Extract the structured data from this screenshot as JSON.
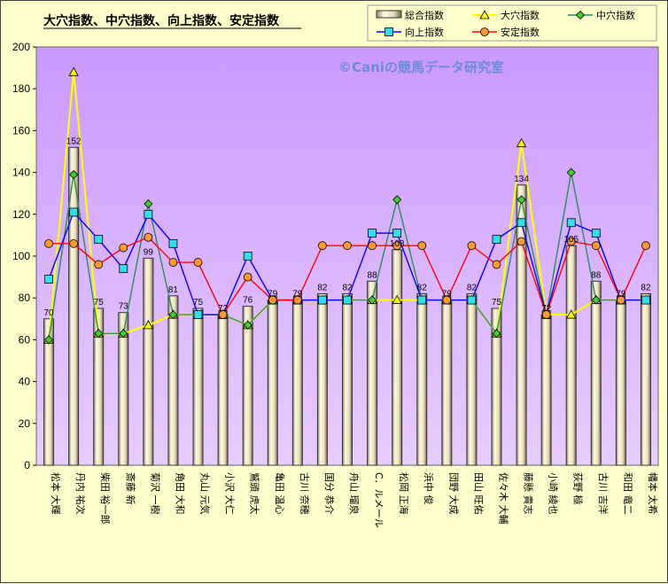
{
  "chart_data": {
    "type": "bar",
    "title": "大穴指数、中穴指数、向上指数、安定指数",
    "watermark": "©Caniの競馬データ研究室",
    "ylim": [
      0,
      200
    ],
    "yticks": [
      0,
      20,
      40,
      60,
      80,
      100,
      120,
      140,
      160,
      180,
      200
    ],
    "grid": false,
    "legend_position": "top-right",
    "categories": [
      "松本 大輝",
      "丹内 祐次",
      "柴田 裕一郎",
      "斎藤 新",
      "菊沢 一樹",
      "角田 大和",
      "丸山 元気",
      "小沢 大仁",
      "鷲頭 虎太",
      "亀田 温心",
      "古川 奈穂",
      "国分 恭介",
      "舟山 瑠泉",
      "C．ルメール",
      "松岡 正海",
      "浜中 俊",
      "団野 大成",
      "田山 旺佑",
      "佐々木 大輔",
      "藤懸 貴志",
      "小崎 綾也",
      "荻野 極",
      "古川 吉洋",
      "和田 竜二",
      "幡本 太希"
    ],
    "series": [
      {
        "name": "総合指数",
        "kind": "bar",
        "color": "#e8dcb8",
        "values": [
          70,
          152,
          75,
          73,
          99,
          81,
          75,
          72,
          76,
          79,
          79,
          82,
          82,
          88,
          103,
          82,
          79,
          82,
          75,
          134,
          72,
          105,
          88,
          79,
          82
        ]
      },
      {
        "name": "大穴指数",
        "kind": "line",
        "color": "#ffff00",
        "marker": "triangle",
        "values": [
          60,
          188,
          63,
          63,
          67,
          72,
          72,
          72,
          67,
          79,
          79,
          79,
          79,
          79,
          79,
          79,
          79,
          79,
          63,
          154,
          72,
          72,
          79,
          79,
          79
        ]
      },
      {
        "name": "中穴指数",
        "kind": "line",
        "color": "#2e8b57",
        "marker": "diamond",
        "values": [
          60,
          139,
          63,
          63,
          125,
          72,
          72,
          72,
          67,
          79,
          79,
          79,
          79,
          79,
          127,
          79,
          79,
          79,
          63,
          127,
          72,
          140,
          79,
          79,
          79
        ]
      },
      {
        "name": "向上指数",
        "kind": "line",
        "color": "#0000ff",
        "marker": "square",
        "values": [
          89,
          121,
          108,
          94,
          120,
          106,
          72,
          72,
          100,
          79,
          79,
          79,
          79,
          111,
          111,
          79,
          79,
          79,
          108,
          116,
          72,
          116,
          111,
          79,
          79
        ]
      },
      {
        "name": "安定指数",
        "kind": "line",
        "color": "#ff0000",
        "marker": "circle",
        "values": [
          106,
          106,
          96,
          104,
          109,
          97,
          97,
          72,
          90,
          79,
          79,
          105,
          105,
          105,
          105,
          105,
          79,
          105,
          96,
          107,
          72,
          107,
          105,
          79,
          105
        ]
      }
    ],
    "data_labels": [
      70,
      152,
      75,
      73,
      99,
      81,
      75,
      72,
      76,
      79,
      79,
      82,
      82,
      88,
      103,
      82,
      79,
      82,
      75,
      134,
      72,
      105,
      88,
      79,
      82
    ]
  }
}
